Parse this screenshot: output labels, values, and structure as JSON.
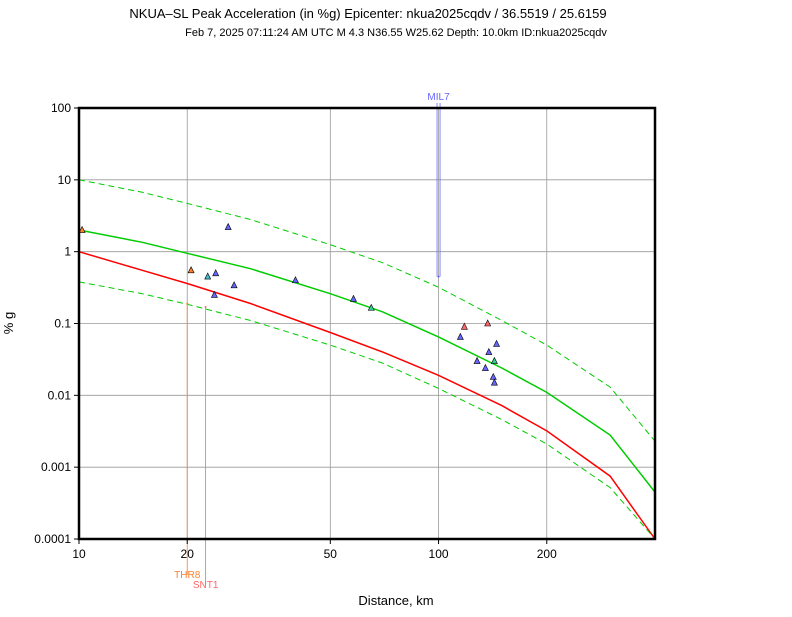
{
  "chart_data": {
    "type": "scatter",
    "title": "NKUA–SL Peak Acceleration (in %g) Epicenter: nkua2025cqdv / 36.5519 / 25.6159",
    "subtitle": "Feb  7, 2025 07:11:24 AM UTC   M 4.3   N36.55 W25.62   Depth: 10.0km   ID:nkua2025cqdv",
    "xlabel": "Distance, km",
    "ylabel": "% g",
    "x_scale": "log",
    "y_scale": "log",
    "xlim": [
      10,
      400
    ],
    "ylim": [
      0.0001,
      100
    ],
    "x_ticks": [
      {
        "value": 10,
        "label": "10"
      },
      {
        "value": 20,
        "label": "20"
      },
      {
        "value": 50,
        "label": "50"
      },
      {
        "value": 100,
        "label": "100"
      },
      {
        "value": 200,
        "label": "200"
      }
    ],
    "y_ticks": [
      {
        "value": 100,
        "label": "100"
      },
      {
        "value": 10,
        "label": "10"
      },
      {
        "value": 1,
        "label": "1"
      },
      {
        "value": 0.1,
        "label": "0.1"
      },
      {
        "value": 0.01,
        "label": "0.01"
      },
      {
        "value": 0.001,
        "label": "0.001"
      },
      {
        "value": 0.0001,
        "label": "0.0001"
      }
    ],
    "grid": true,
    "curves": [
      {
        "role": "red-curve",
        "color": "#ff0000",
        "style": "solid",
        "x": [
          10,
          15,
          20,
          30,
          50,
          70,
          100,
          150,
          200,
          300,
          400
        ],
        "y": [
          1.0,
          0.55,
          0.36,
          0.19,
          0.075,
          0.04,
          0.019,
          0.0072,
          0.0032,
          0.00075,
          0.0001
        ]
      },
      {
        "role": "green-curve",
        "color": "#00cc00",
        "style": "solid",
        "x": [
          10,
          15,
          20,
          30,
          50,
          70,
          100,
          150,
          200,
          300,
          400
        ],
        "y": [
          2.0,
          1.35,
          0.95,
          0.58,
          0.26,
          0.145,
          0.065,
          0.024,
          0.011,
          0.0028,
          0.00045
        ]
      },
      {
        "role": "green-upper-dashed",
        "color": "#00cc00",
        "style": "dashed",
        "x": [
          10,
          15,
          20,
          30,
          50,
          70,
          100,
          150,
          200,
          300,
          400
        ],
        "y": [
          10,
          6.7,
          4.7,
          2.8,
          1.25,
          0.7,
          0.32,
          0.11,
          0.05,
          0.013,
          0.0023
        ]
      },
      {
        "role": "green-lower-dashed",
        "color": "#00cc00",
        "style": "dashed",
        "x": [
          10,
          15,
          20,
          30,
          50,
          70,
          100,
          150,
          200,
          300,
          400
        ],
        "y": [
          0.38,
          0.26,
          0.185,
          0.11,
          0.05,
          0.028,
          0.0125,
          0.0046,
          0.0021,
          0.00052,
          0.0001
        ]
      }
    ],
    "points": [
      {
        "x": 10.2,
        "y": 2.0,
        "color": "#ff7f2a"
      },
      {
        "x": 20.5,
        "y": 0.55,
        "color": "#ff7f2a"
      },
      {
        "x": 22.8,
        "y": 0.45,
        "color": "#44bbcc"
      },
      {
        "x": 24.0,
        "y": 0.5,
        "color": "#6666ff"
      },
      {
        "x": 23.8,
        "y": 0.25,
        "color": "#6666ff"
      },
      {
        "x": 26.0,
        "y": 2.2,
        "color": "#6666ff"
      },
      {
        "x": 27.0,
        "y": 0.34,
        "color": "#6666ff"
      },
      {
        "x": 40.0,
        "y": 0.4,
        "color": "#6666ff"
      },
      {
        "x": 58.0,
        "y": 0.22,
        "color": "#6666ff"
      },
      {
        "x": 65.0,
        "y": 0.165,
        "color": "#33cc99"
      },
      {
        "x": 118.0,
        "y": 0.09,
        "color": "#ff6666"
      },
      {
        "x": 137.0,
        "y": 0.1,
        "color": "#ff6666"
      },
      {
        "x": 115.0,
        "y": 0.065,
        "color": "#6666ff"
      },
      {
        "x": 145.0,
        "y": 0.052,
        "color": "#6666ff"
      },
      {
        "x": 138.0,
        "y": 0.04,
        "color": "#6666ff"
      },
      {
        "x": 128.0,
        "y": 0.03,
        "color": "#6666ff"
      },
      {
        "x": 143.0,
        "y": 0.03,
        "color": "#33cc99"
      },
      {
        "x": 135.0,
        "y": 0.024,
        "color": "#6666ff"
      },
      {
        "x": 142.0,
        "y": 0.018,
        "color": "#6666ff"
      },
      {
        "x": 143.0,
        "y": 0.015,
        "color": "#6666ff"
      }
    ],
    "station_labels": [
      {
        "name": "MIL7",
        "x": 100.0,
        "y": 0.45,
        "color": "#6666ff",
        "position": "top"
      },
      {
        "name": "THR8",
        "x": 20.0,
        "y": 0.19,
        "color": "#ff7f2a",
        "position": "bottom"
      },
      {
        "name": "SNT1",
        "x": 22.5,
        "y": 0.17,
        "color": "#ff6666",
        "position": "bottom"
      }
    ]
  }
}
